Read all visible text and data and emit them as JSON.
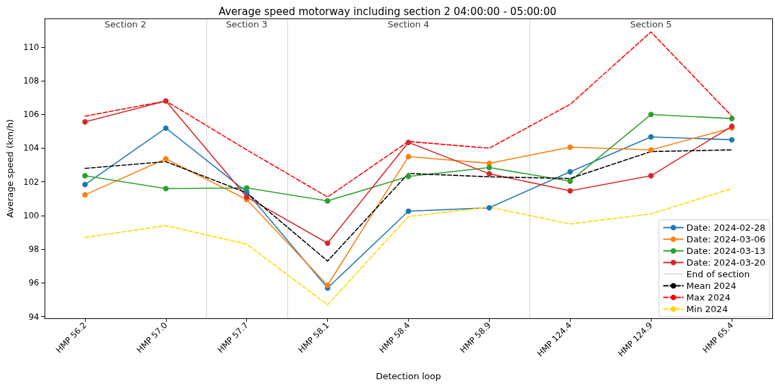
{
  "chart_data": {
    "type": "line",
    "title": "Average speed motorway including section 2 04:00:00 - 05:00:00",
    "xlabel": "Detection loop",
    "ylabel": "Average speed (km/h)",
    "categories": [
      "HMP 56.2",
      "HMP 57.0",
      "HMP 57.7",
      "HMP 58.1",
      "HMP 58.4",
      "HMP 58.9",
      "HMP 124.4",
      "HMP 124.9",
      "HMP 65.4"
    ],
    "series": [
      {
        "name": "Date: 2024-02-28",
        "color": "#1f77b4",
        "marker": "circle",
        "line_style": "solid",
        "values": [
          101.84,
          105.19,
          101.4,
          95.7,
          100.26,
          100.46,
          102.6,
          104.67,
          104.5
        ]
      },
      {
        "name": "Date: 2024-03-06",
        "color": "#ff7f0e",
        "marker": "circle",
        "line_style": "solid",
        "values": [
          101.23,
          103.37,
          100.95,
          95.86,
          103.5,
          103.1,
          104.06,
          103.9,
          105.2
        ]
      },
      {
        "name": "Date: 2024-03-13",
        "color": "#2ca02c",
        "marker": "circle",
        "line_style": "solid",
        "values": [
          102.36,
          101.6,
          101.64,
          100.87,
          102.32,
          102.85,
          102.04,
          106.0,
          105.76
        ]
      },
      {
        "name": "Date: 2024-03-20",
        "color": "#d62728",
        "marker": "circle",
        "line_style": "solid",
        "values": [
          105.56,
          106.8,
          101.1,
          98.36,
          104.34,
          102.48,
          101.47,
          102.36,
          105.3
        ]
      },
      {
        "name": "Mean 2024",
        "color": "#000000",
        "marker": "none",
        "line_style": "dashed",
        "values": [
          102.8,
          103.2,
          101.35,
          97.3,
          102.5,
          102.3,
          102.2,
          103.8,
          103.9
        ]
      },
      {
        "name": "Max 2024",
        "color": "#ff0000",
        "marker": "none",
        "line_style": "dashed",
        "values": [
          105.9,
          106.8,
          103.9,
          101.1,
          104.4,
          104.0,
          106.6,
          110.9,
          105.9
        ]
      },
      {
        "name": "Min 2024",
        "color": "#ffd700",
        "marker": "none",
        "line_style": "dashed",
        "values": [
          98.7,
          99.4,
          98.3,
          94.7,
          99.94,
          100.5,
          99.5,
          100.1,
          101.6
        ]
      }
    ],
    "annotations": [
      "Section 2",
      "Section 3",
      "Section 4",
      "Section 5",
      "End of section"
    ],
    "ylim": [
      93.9,
      111.7
    ],
    "yticks": [
      94,
      96,
      98,
      100,
      102,
      104,
      106,
      108,
      110
    ],
    "grid": false,
    "legend": "bottom right"
  }
}
